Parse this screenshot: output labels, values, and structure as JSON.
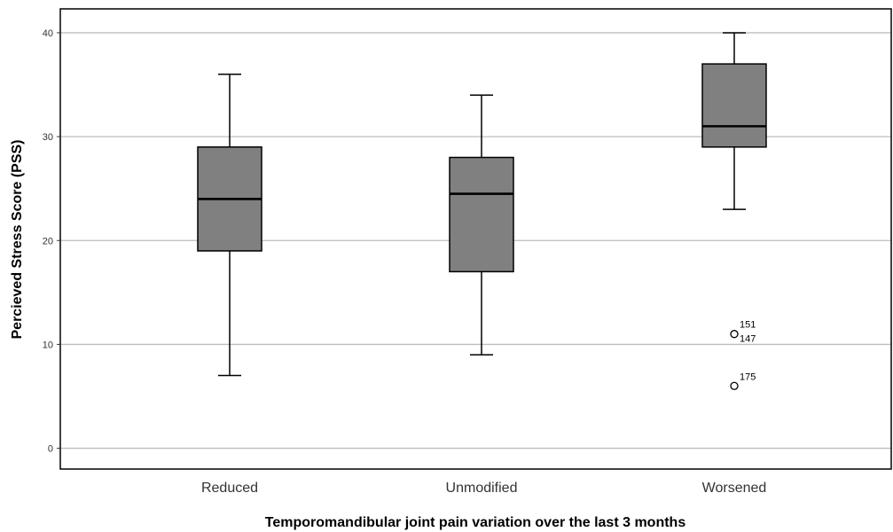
{
  "chart_data": {
    "type": "box",
    "xlabel": "Temporomandibular joint pain variation over the last 3 months",
    "ylabel": "Percieved Stress Score (PSS)",
    "ylim": [
      -2,
      42.3
    ],
    "yticks": [
      0,
      10,
      20,
      30,
      40
    ],
    "grid": "horizontal",
    "box_color": "#808080",
    "categories": [
      "Reduced",
      "Unmodified",
      "Worsened"
    ],
    "boxes": [
      {
        "category": "Reduced",
        "whisker_low": 7,
        "q1": 19,
        "median": 24,
        "q3": 29,
        "whisker_high": 36,
        "outliers": []
      },
      {
        "category": "Unmodified",
        "whisker_low": 9,
        "q1": 17,
        "median": 24.5,
        "q3": 28,
        "whisker_high": 34,
        "outliers": []
      },
      {
        "category": "Worsened",
        "whisker_low": 23,
        "q1": 29,
        "median": 31,
        "q3": 37,
        "whisker_high": 40,
        "outliers": [
          {
            "value": 11,
            "labels": [
              "151",
              "147"
            ]
          },
          {
            "value": 6,
            "labels": [
              "175"
            ]
          }
        ]
      }
    ]
  }
}
